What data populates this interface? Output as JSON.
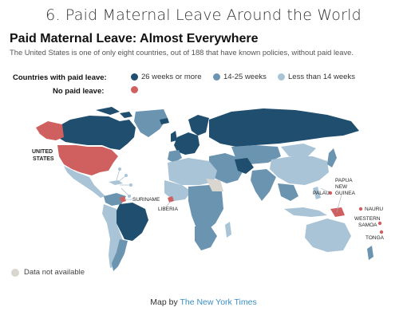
{
  "slide": {
    "title": "6. Paid Maternal Leave Around the World"
  },
  "map": {
    "title": "Paid Maternal Leave: Almost Everywhere",
    "subtitle": "The United States is one of only eight countries, out of 188 that have known policies, without paid leave.",
    "legend": {
      "paid_label": "Countries with paid leave:",
      "no_paid_label": "No paid leave:",
      "items": [
        {
          "label": "26 weeks or more",
          "color": "#1f4e6e"
        },
        {
          "label": "14-25 weeks",
          "color": "#6b94b0"
        },
        {
          "label": "Less than 14 weeks",
          "color": "#a9c4d6"
        }
      ],
      "no_paid_color": "#d06060",
      "not_available": {
        "label": "Data not available",
        "color": "#d9d6cf"
      }
    },
    "labels": {
      "united_states": [
        "UNITED",
        "STATES"
      ],
      "suriname": "SURINAME",
      "liberia": "LIBERIA",
      "palau": "PALAU",
      "png": [
        "PAPUA",
        "NEW",
        "GUINEA"
      ],
      "nauru": "NAURU",
      "samoa": [
        "WESTERN",
        "SAMOA"
      ],
      "tonga": "TONGA"
    }
  },
  "footer": {
    "prefix": "Map by ",
    "link": "The New York Times"
  }
}
